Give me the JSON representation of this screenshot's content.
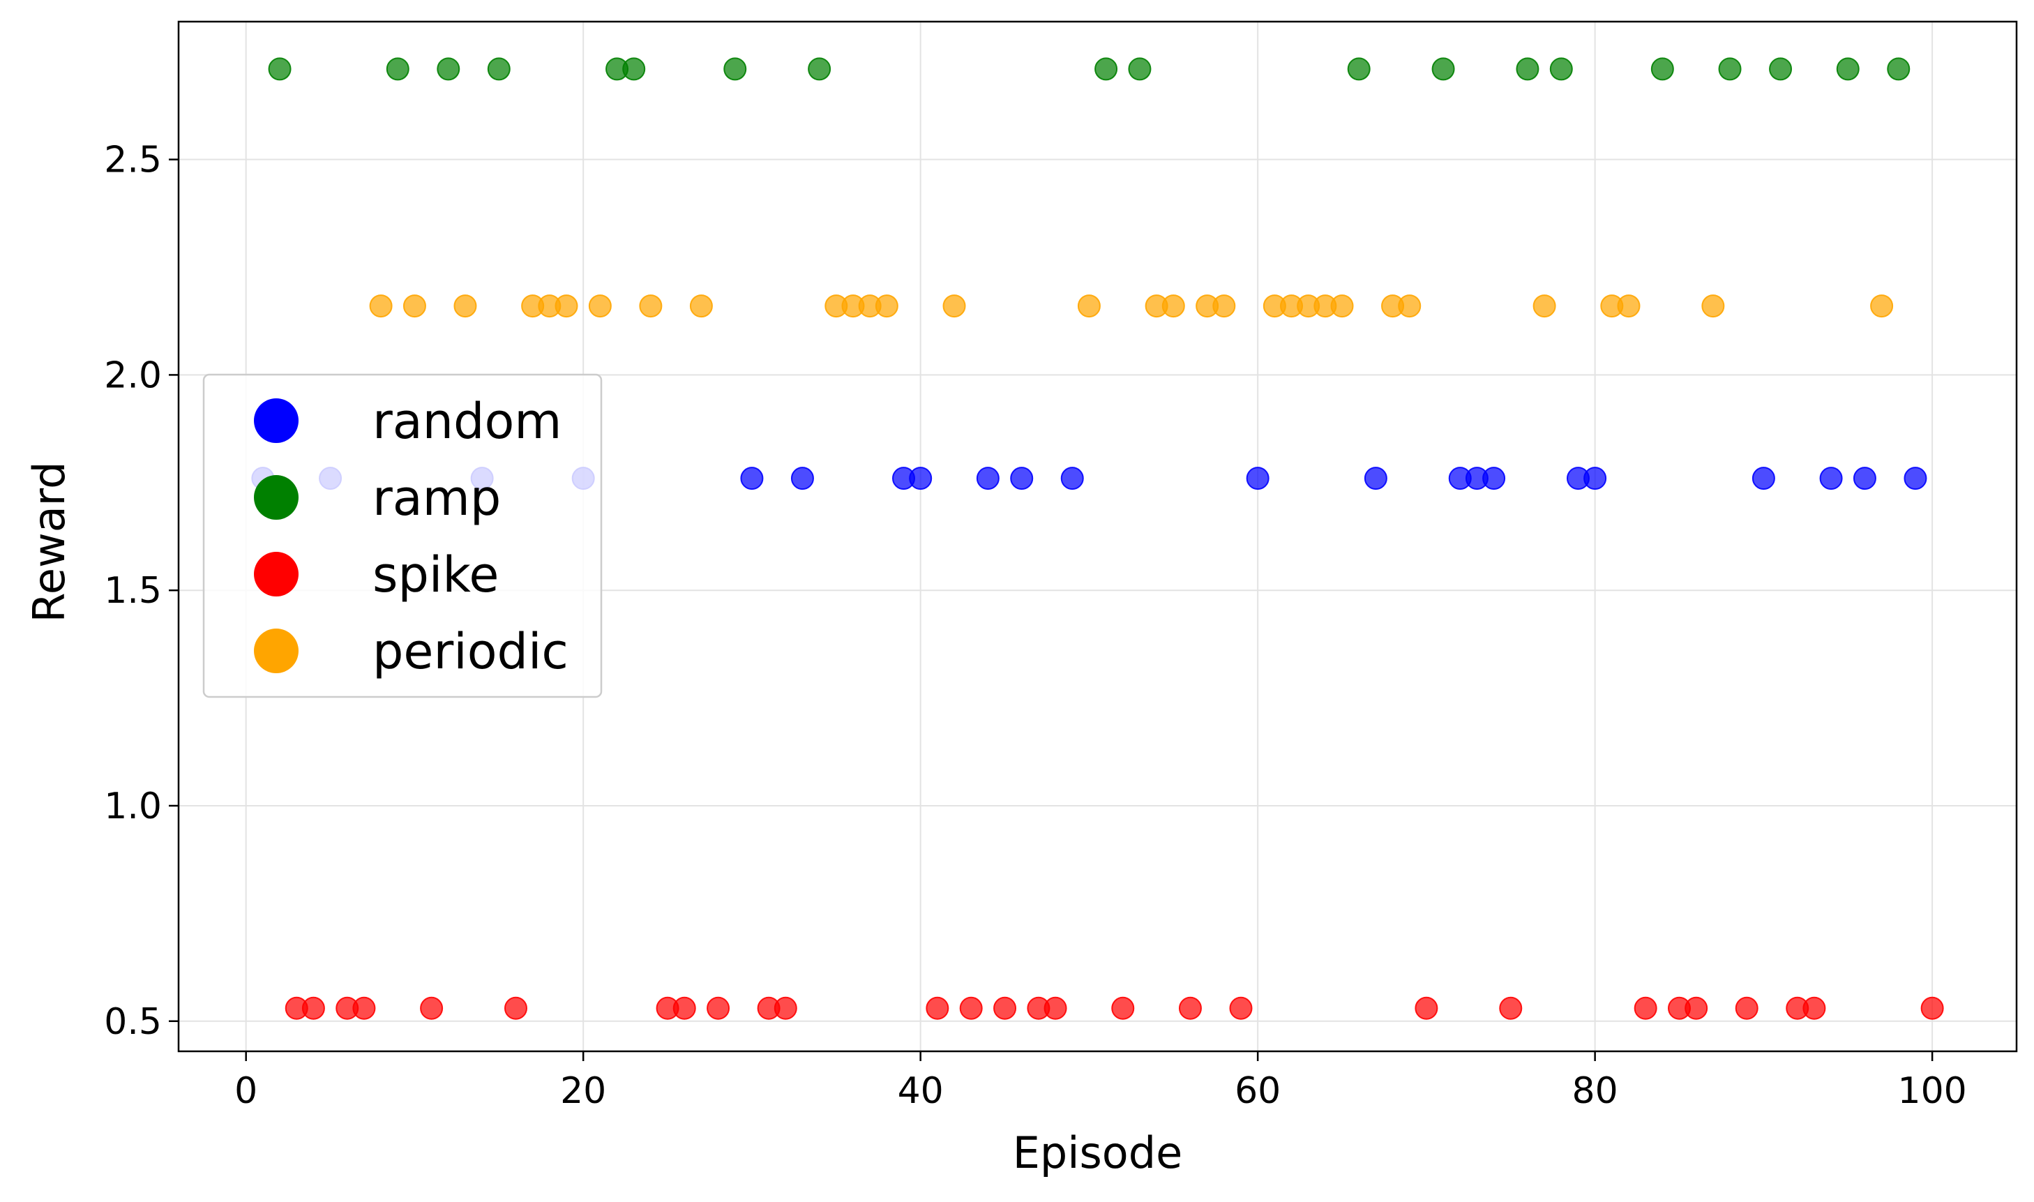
{
  "chart_data": {
    "type": "scatter",
    "xlabel": "Episode",
    "ylabel": "Reward",
    "xlim": [
      -4,
      105
    ],
    "ylim": [
      0.43,
      2.82
    ],
    "xticks": [
      0,
      20,
      40,
      60,
      80,
      100
    ],
    "yticks": [
      0.5,
      1.0,
      1.5,
      2.0,
      2.5
    ],
    "xtick_labels": [
      "0",
      "20",
      "40",
      "60",
      "80",
      "100"
    ],
    "ytick_labels": [
      "0.5",
      "1.0",
      "1.5",
      "2.0",
      "2.5"
    ],
    "grid": true,
    "legend_position": "center-left",
    "series": [
      {
        "name": "random",
        "color": "#0000ff",
        "y_value": 1.76,
        "x": [
          1,
          5,
          14,
          20,
          30,
          33,
          39,
          40,
          44,
          46,
          49,
          60,
          67,
          72,
          73,
          74,
          79,
          80,
          90,
          94,
          96,
          99
        ]
      },
      {
        "name": "ramp",
        "color": "#008000",
        "y_value": 2.71,
        "x": [
          2,
          9,
          12,
          15,
          22,
          23,
          29,
          34,
          51,
          53,
          66,
          71,
          76,
          78,
          84,
          88,
          91,
          95,
          98
        ]
      },
      {
        "name": "spike",
        "color": "#ff0000",
        "y_value": 0.53,
        "x": [
          3,
          4,
          6,
          7,
          11,
          16,
          25,
          26,
          28,
          31,
          32,
          41,
          43,
          45,
          47,
          48,
          52,
          56,
          59,
          70,
          75,
          83,
          85,
          86,
          89,
          92,
          93,
          100
        ]
      },
      {
        "name": "periodic",
        "color": "#ffa500",
        "y_value": 2.16,
        "x": [
          8,
          10,
          13,
          17,
          18,
          19,
          21,
          24,
          27,
          35,
          36,
          37,
          38,
          42,
          50,
          54,
          55,
          57,
          58,
          61,
          62,
          63,
          64,
          65,
          68,
          69,
          77,
          81,
          82,
          87,
          97
        ]
      }
    ]
  }
}
